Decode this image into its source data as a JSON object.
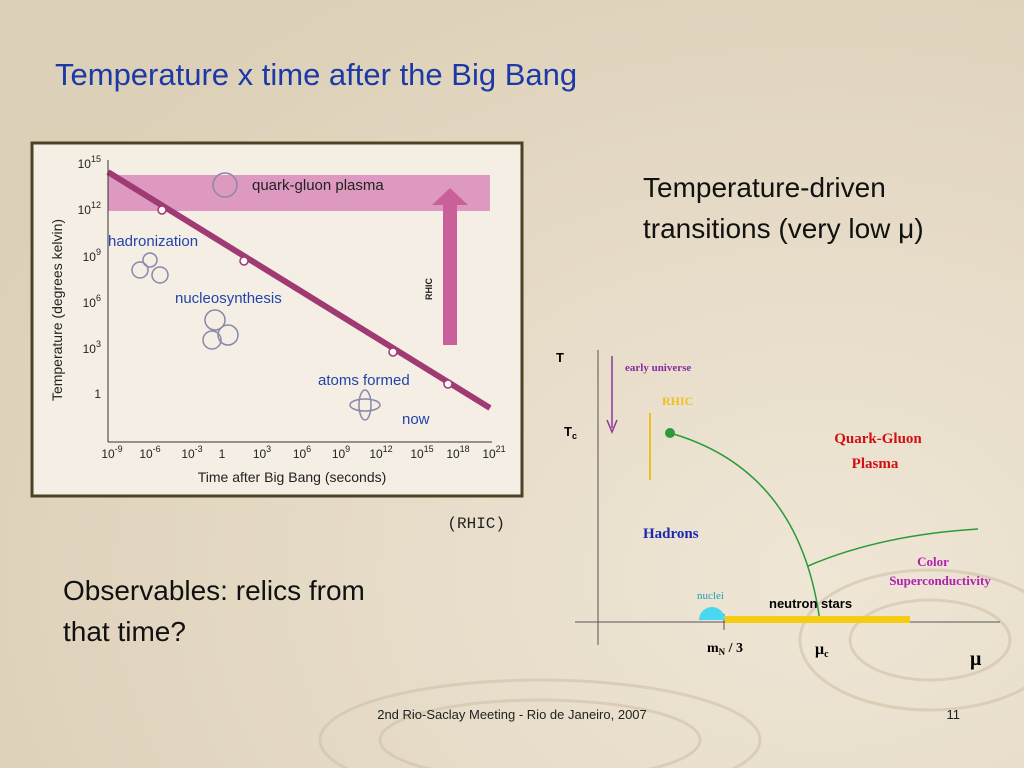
{
  "title": "Temperature x time after the Big Bang",
  "figure": {
    "y_axis_label": "Temperature (degrees kelvin)",
    "x_axis_label": "Time after Big Bang (seconds)",
    "y_ticks": [
      {
        "base": "10",
        "exp": "15"
      },
      {
        "base": "10",
        "exp": "12"
      },
      {
        "base": "10",
        "exp": "9"
      },
      {
        "base": "10",
        "exp": "6"
      },
      {
        "base": "10",
        "exp": "3"
      },
      {
        "base": "1",
        "exp": ""
      }
    ],
    "x_ticks": [
      {
        "base": "10",
        "exp": "-9"
      },
      {
        "base": "10",
        "exp": "-6"
      },
      {
        "base": "10",
        "exp": "-3"
      },
      {
        "base": "1",
        "exp": ""
      },
      {
        "base": "10",
        "exp": "3"
      },
      {
        "base": "10",
        "exp": "6"
      },
      {
        "base": "10",
        "exp": "9"
      },
      {
        "base": "10",
        "exp": "12"
      },
      {
        "base": "10",
        "exp": "15"
      },
      {
        "base": "10",
        "exp": "18"
      },
      {
        "base": "10",
        "exp": "21"
      }
    ],
    "labels": {
      "qgp": "quark-gluon plasma",
      "hadronization": "hadronization",
      "nucleosynthesis": "nucleosynthesis",
      "atoms": "atoms formed",
      "now": "now",
      "rhic": "RHIC"
    },
    "caption": "(RHIC)"
  },
  "right_text": [
    "Temperature-driven",
    "transitions (very low μ)"
  ],
  "left_text": [
    "Observables: relics from",
    "that time?"
  ],
  "phase_diagram": {
    "t_axis": "T",
    "tc": "T",
    "tc_sub": "c",
    "early_universe": "early universe",
    "rhic": "RHIC",
    "qgp": [
      "Quark-Gluon",
      "Plasma"
    ],
    "hadrons": "Hadrons",
    "color_sc": [
      "Color",
      "Superconductivity"
    ],
    "nuclei": "nuclei",
    "neutron_stars": "neutron stars",
    "mn": "m",
    "mn_sub": "N",
    "mn_rest": " / 3",
    "muc": "μ",
    "muc_sub": "c",
    "mu_axis": "μ"
  },
  "footer": {
    "text": "2nd Rio-Saclay Meeting - Rio de Janeiro, 2007",
    "page": "11"
  }
}
